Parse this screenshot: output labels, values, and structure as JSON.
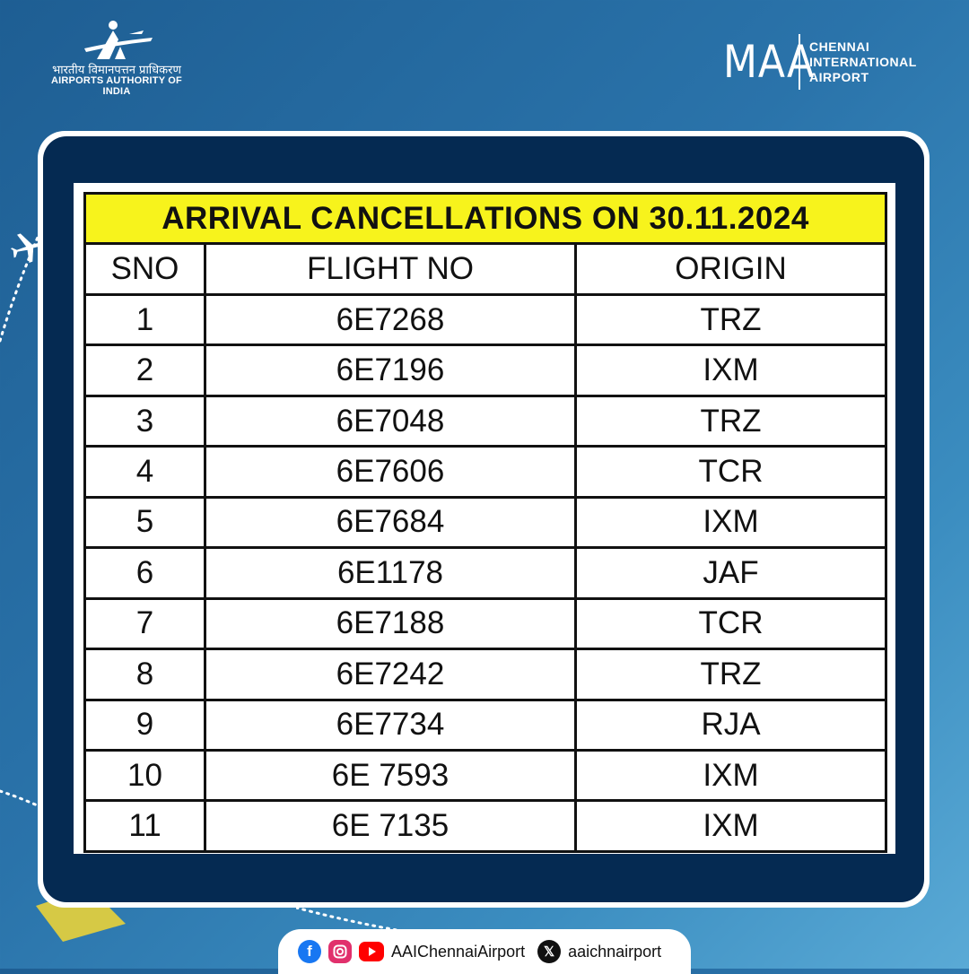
{
  "header": {
    "org_hindi": "भारतीय विमानपत्तन प्राधिकरण",
    "org_english": "AIRPORTS AUTHORITY OF INDIA",
    "airport_code": "MAA",
    "airport_name_lines": [
      "CHENNAI",
      "INTERNATIONAL",
      "AIRPORT"
    ]
  },
  "table": {
    "title": "ARRIVAL CANCELLATIONS ON 30.11.2024",
    "columns": [
      "SNO",
      "FLIGHT NO",
      "ORIGIN"
    ],
    "rows": [
      [
        "1",
        "6E7268",
        "TRZ"
      ],
      [
        "2",
        "6E7196",
        "IXM"
      ],
      [
        "3",
        "6E7048",
        "TRZ"
      ],
      [
        "4",
        "6E7606",
        "TCR"
      ],
      [
        "5",
        "6E7684",
        "IXM"
      ],
      [
        "6",
        "6E1178",
        "JAF"
      ],
      [
        "7",
        "6E7188",
        "TCR"
      ],
      [
        "8",
        "6E7242",
        "TRZ"
      ],
      [
        "9",
        "6E7734",
        "RJA"
      ],
      [
        "10",
        "6E 7593",
        "IXM"
      ],
      [
        "11",
        "6E 7135",
        "IXM"
      ]
    ],
    "title_bg": "#f7f31c"
  },
  "social": {
    "handle_main": "AAIChennaiAirport",
    "handle_x": "aaichnairport",
    "icons": [
      "facebook-icon",
      "instagram-icon",
      "youtube-icon",
      "x-icon"
    ]
  },
  "colors": {
    "frame_navy": "#052a52",
    "background_blue": "#2a73aa"
  }
}
